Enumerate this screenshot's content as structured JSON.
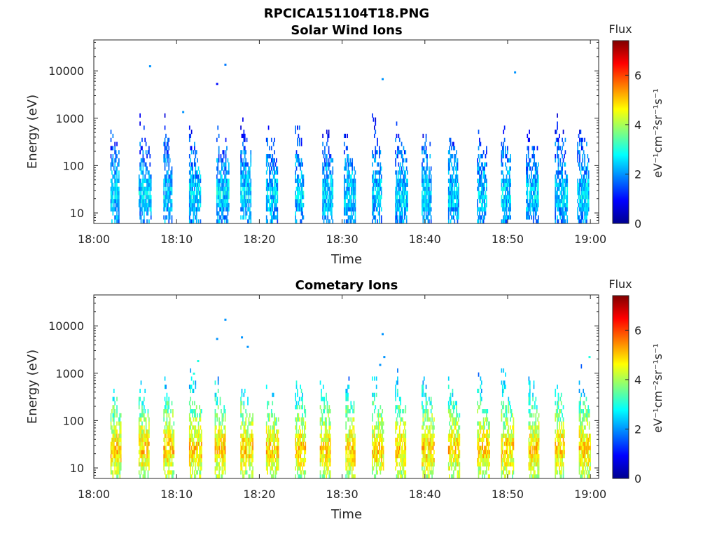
{
  "figure_title": "RPCICA151104T18.PNG",
  "chart_data": [
    {
      "type": "heatmap",
      "title": "Solar Wind Ions",
      "xlabel": "Time",
      "ylabel": "Energy (eV)",
      "x_ticks": [
        "18:00",
        "18:10",
        "18:20",
        "18:30",
        "18:40",
        "18:50",
        "19:00"
      ],
      "x_range": [
        "18:00",
        "19:01"
      ],
      "y_ticks": [
        "10",
        "100",
        "1000",
        "10000"
      ],
      "y_scale": "log",
      "y_range": [
        6,
        45000
      ],
      "colorbar": {
        "title": "Flux",
        "unit": "eV⁻¹cm⁻²sr⁻¹s⁻¹",
        "range": [
          0,
          7.4
        ],
        "ticks": [
          "0",
          "2",
          "4",
          "6"
        ],
        "colormap": "jet"
      },
      "sweep_start_minutes": [
        2.0,
        5.4,
        8.4,
        11.5,
        14.8,
        17.7,
        20.8,
        24.3,
        27.6,
        30.2,
        33.6,
        36.4,
        39.6,
        42.8,
        46.3,
        49.2,
        52.2,
        55.7,
        58.4
      ],
      "typical_flux": 2.5,
      "peak_energy_eV": 25,
      "sparse_points": [
        {
          "time_minutes": 6.8,
          "energy_eV": 12500,
          "flux": 2.0
        },
        {
          "time_minutes": 10.8,
          "energy_eV": 1350,
          "flux": 2.0
        },
        {
          "time_minutes": 14.9,
          "energy_eV": 5300,
          "flux": 1.0
        },
        {
          "time_minutes": 15.9,
          "energy_eV": 13500,
          "flux": 1.8
        },
        {
          "time_minutes": 34.9,
          "energy_eV": 6700,
          "flux": 2.0
        },
        {
          "time_minutes": 50.9,
          "energy_eV": 9300,
          "flux": 2.0
        }
      ]
    },
    {
      "type": "heatmap",
      "title": "Cometary Ions",
      "xlabel": "Time",
      "ylabel": "Energy (eV)",
      "x_ticks": [
        "18:00",
        "18:10",
        "18:20",
        "18:30",
        "18:40",
        "18:50",
        "19:00"
      ],
      "x_range": [
        "18:00",
        "19:01"
      ],
      "y_ticks": [
        "10",
        "100",
        "1000",
        "10000"
      ],
      "y_scale": "log",
      "y_range": [
        6,
        45000
      ],
      "colorbar": {
        "title": "Flux",
        "unit": "eV⁻¹cm⁻²sr⁻¹s⁻¹",
        "range": [
          0,
          7.4
        ],
        "ticks": [
          "0",
          "2",
          "4",
          "6"
        ],
        "colormap": "jet"
      },
      "sweep_start_minutes": [
        2.0,
        5.4,
        8.4,
        11.5,
        14.6,
        17.7,
        20.8,
        24.3,
        27.3,
        30.4,
        33.6,
        36.4,
        39.6,
        42.8,
        46.3,
        49.2,
        52.5,
        55.7,
        58.6
      ],
      "typical_flux": 5.0,
      "peak_energy_eV": 25,
      "sparse_points": [
        {
          "time_minutes": 12.6,
          "energy_eV": 1800,
          "flux": 3.0
        },
        {
          "time_minutes": 12.1,
          "energy_eV": 980,
          "flux": 3.0
        },
        {
          "time_minutes": 14.9,
          "energy_eV": 5300,
          "flux": 2.0
        },
        {
          "time_minutes": 15.9,
          "energy_eV": 13500,
          "flux": 2.0
        },
        {
          "time_minutes": 17.9,
          "energy_eV": 5700,
          "flux": 2.0
        },
        {
          "time_minutes": 18.6,
          "energy_eV": 3600,
          "flux": 2.0
        },
        {
          "time_minutes": 34.9,
          "energy_eV": 6700,
          "flux": 2.0
        },
        {
          "time_minutes": 35.1,
          "energy_eV": 2200,
          "flux": 2.0
        },
        {
          "time_minutes": 34.6,
          "energy_eV": 1500,
          "flux": 2.0
        },
        {
          "time_minutes": 59.9,
          "energy_eV": 2200,
          "flux": 3.0
        }
      ]
    }
  ]
}
